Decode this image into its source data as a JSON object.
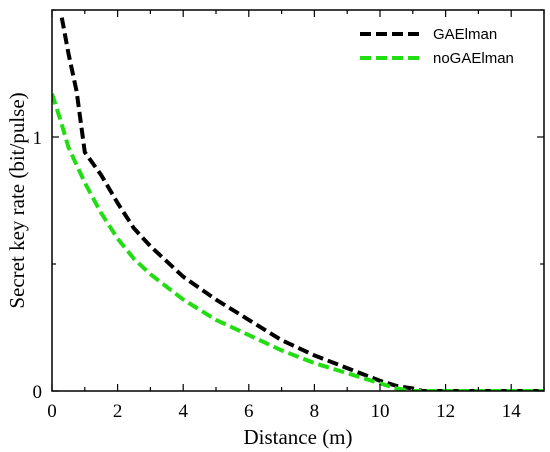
{
  "chart_data": {
    "type": "line",
    "title": "",
    "xlabel": "Distance (m)",
    "ylabel": "Secret key rate (bit/pulse)",
    "xlim": [
      0,
      15
    ],
    "ylim": [
      0,
      1.5
    ],
    "x_ticks": [
      0,
      2,
      4,
      6,
      8,
      10,
      12,
      14
    ],
    "y_ticks": [
      0,
      1
    ],
    "legend_position": "top-right",
    "grid": false,
    "series": [
      {
        "name": "GAElman",
        "color": "#000000",
        "line_style": "dashed",
        "x": [
          0.3,
          0.5,
          0.75,
          1.0,
          1.5,
          2.0,
          2.5,
          3.0,
          4.0,
          5.0,
          6.0,
          7.0,
          8.0,
          9.0,
          10.0,
          10.5,
          11.0,
          11.3,
          12.0,
          13.0,
          14.0,
          15.0
        ],
        "y": [
          1.47,
          1.33,
          1.18,
          0.94,
          0.85,
          0.74,
          0.64,
          0.57,
          0.45,
          0.36,
          0.28,
          0.2,
          0.14,
          0.09,
          0.04,
          0.02,
          0.01,
          0.0,
          0.0,
          0.0,
          0.0,
          0.0
        ]
      },
      {
        "name": "noGAElman",
        "color": "#22dd11",
        "line_style": "dashed",
        "x": [
          0.0,
          0.25,
          0.5,
          1.0,
          1.5,
          2.0,
          2.5,
          3.0,
          4.0,
          5.0,
          6.0,
          7.0,
          8.0,
          9.0,
          10.0,
          10.5,
          11.0,
          11.3,
          12.0,
          13.0,
          14.0,
          15.0
        ],
        "y": [
          1.17,
          1.07,
          0.96,
          0.82,
          0.7,
          0.6,
          0.52,
          0.46,
          0.36,
          0.28,
          0.22,
          0.16,
          0.11,
          0.07,
          0.03,
          0.01,
          0.0,
          0.0,
          0.0,
          0.0,
          0.0,
          0.0
        ]
      }
    ]
  }
}
